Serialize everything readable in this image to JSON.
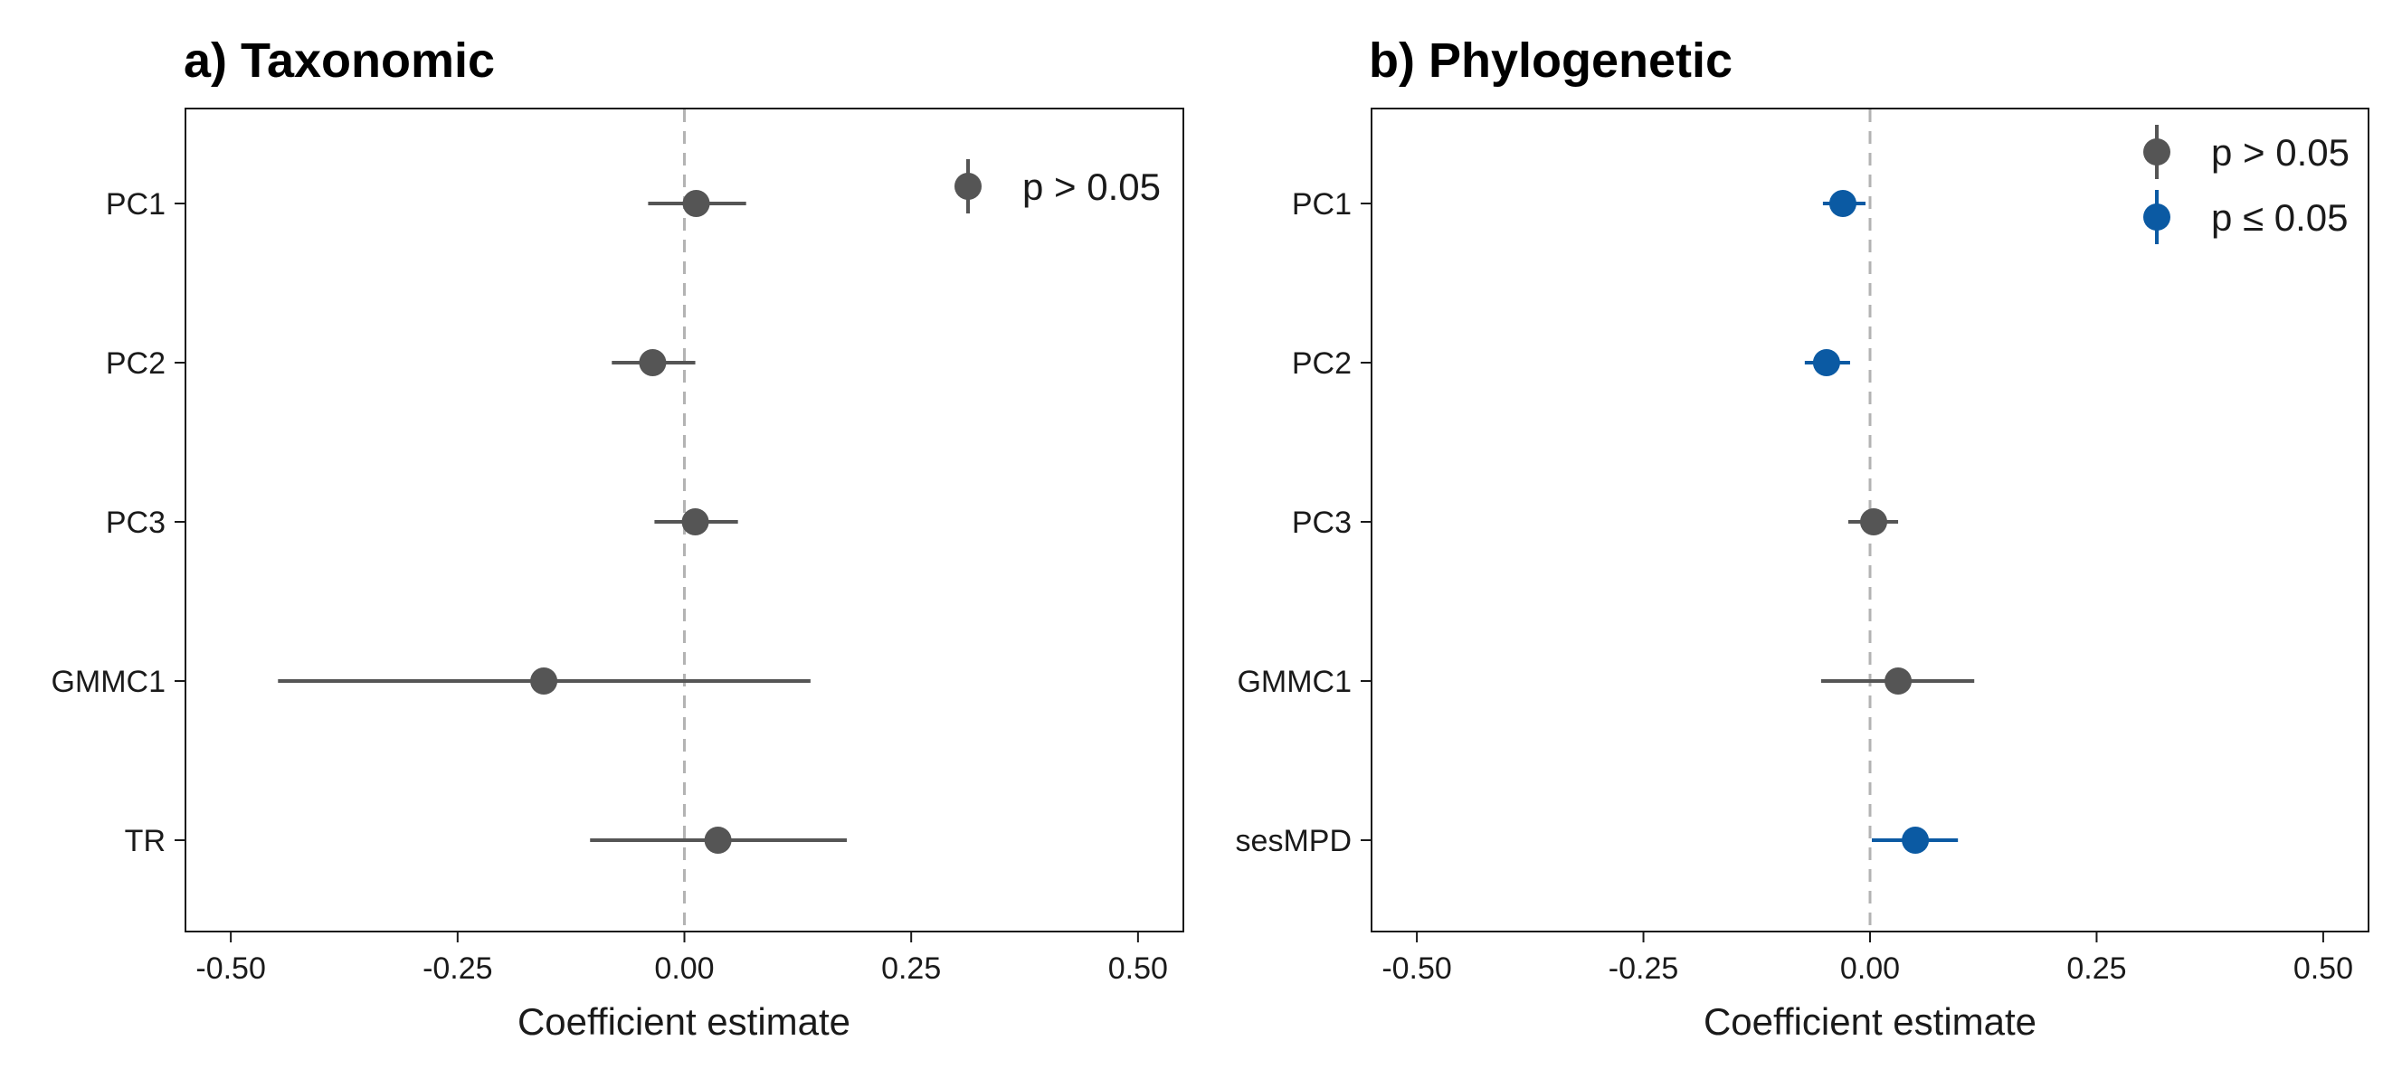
{
  "chart_data": [
    {
      "type": "scatter",
      "title": "a) Taxonomic",
      "xlabel": "Coefficient estimate",
      "ylabel": "",
      "xlim": [
        -0.55,
        0.55
      ],
      "xticks": [
        -0.5,
        -0.25,
        0.0,
        0.25,
        0.5
      ],
      "xtick_labels": [
        "-0.50",
        "-0.25",
        "0.00",
        "0.25",
        "0.50"
      ],
      "categories": [
        "PC1",
        "PC2",
        "PC3",
        "GMMC1",
        "TR"
      ],
      "estimates": [
        0.013,
        -0.035,
        0.012,
        -0.155,
        0.037
      ],
      "ci_low": [
        -0.04,
        -0.08,
        -0.033,
        -0.448,
        -0.104
      ],
      "ci_high": [
        0.068,
        0.012,
        0.059,
        0.139,
        0.179
      ],
      "significance": [
        "p > 0.05",
        "p > 0.05",
        "p > 0.05",
        "p > 0.05",
        "p > 0.05"
      ],
      "reference_line": 0,
      "legend": [
        {
          "label": "p > 0.05",
          "color": "#555555"
        }
      ],
      "legend_position": "top-right",
      "grid": false
    },
    {
      "type": "scatter",
      "title": "b) Phylogenetic",
      "xlabel": "Coefficient estimate",
      "ylabel": "",
      "xlim": [
        -0.55,
        0.55
      ],
      "xticks": [
        -0.5,
        -0.25,
        0.0,
        0.25,
        0.5
      ],
      "xtick_labels": [
        "-0.50",
        "-0.25",
        "0.00",
        "0.25",
        "0.50"
      ],
      "categories": [
        "PC1",
        "PC2",
        "PC3",
        "GMMC1",
        "sesMPD"
      ],
      "estimates": [
        -0.03,
        -0.048,
        0.004,
        0.031,
        0.05
      ],
      "ci_low": [
        -0.052,
        -0.072,
        -0.024,
        -0.054,
        0.002
      ],
      "ci_high": [
        -0.005,
        -0.022,
        0.031,
        0.115,
        0.097
      ],
      "significance": [
        "p ≤ 0.05",
        "p ≤ 0.05",
        "p > 0.05",
        "p > 0.05",
        "p ≤ 0.05"
      ],
      "reference_line": 0,
      "legend": [
        {
          "label": "p > 0.05",
          "color": "#555555"
        },
        {
          "label": "p ≤ 0.05",
          "color": "#0b5aa3"
        }
      ],
      "legend_position": "top-right",
      "grid": false
    }
  ],
  "colors": {
    "nonsignificant": "#555555",
    "significant": "#0b5aa3",
    "reference_line": "#b3b3b3",
    "frame": "#1a1a1a"
  }
}
